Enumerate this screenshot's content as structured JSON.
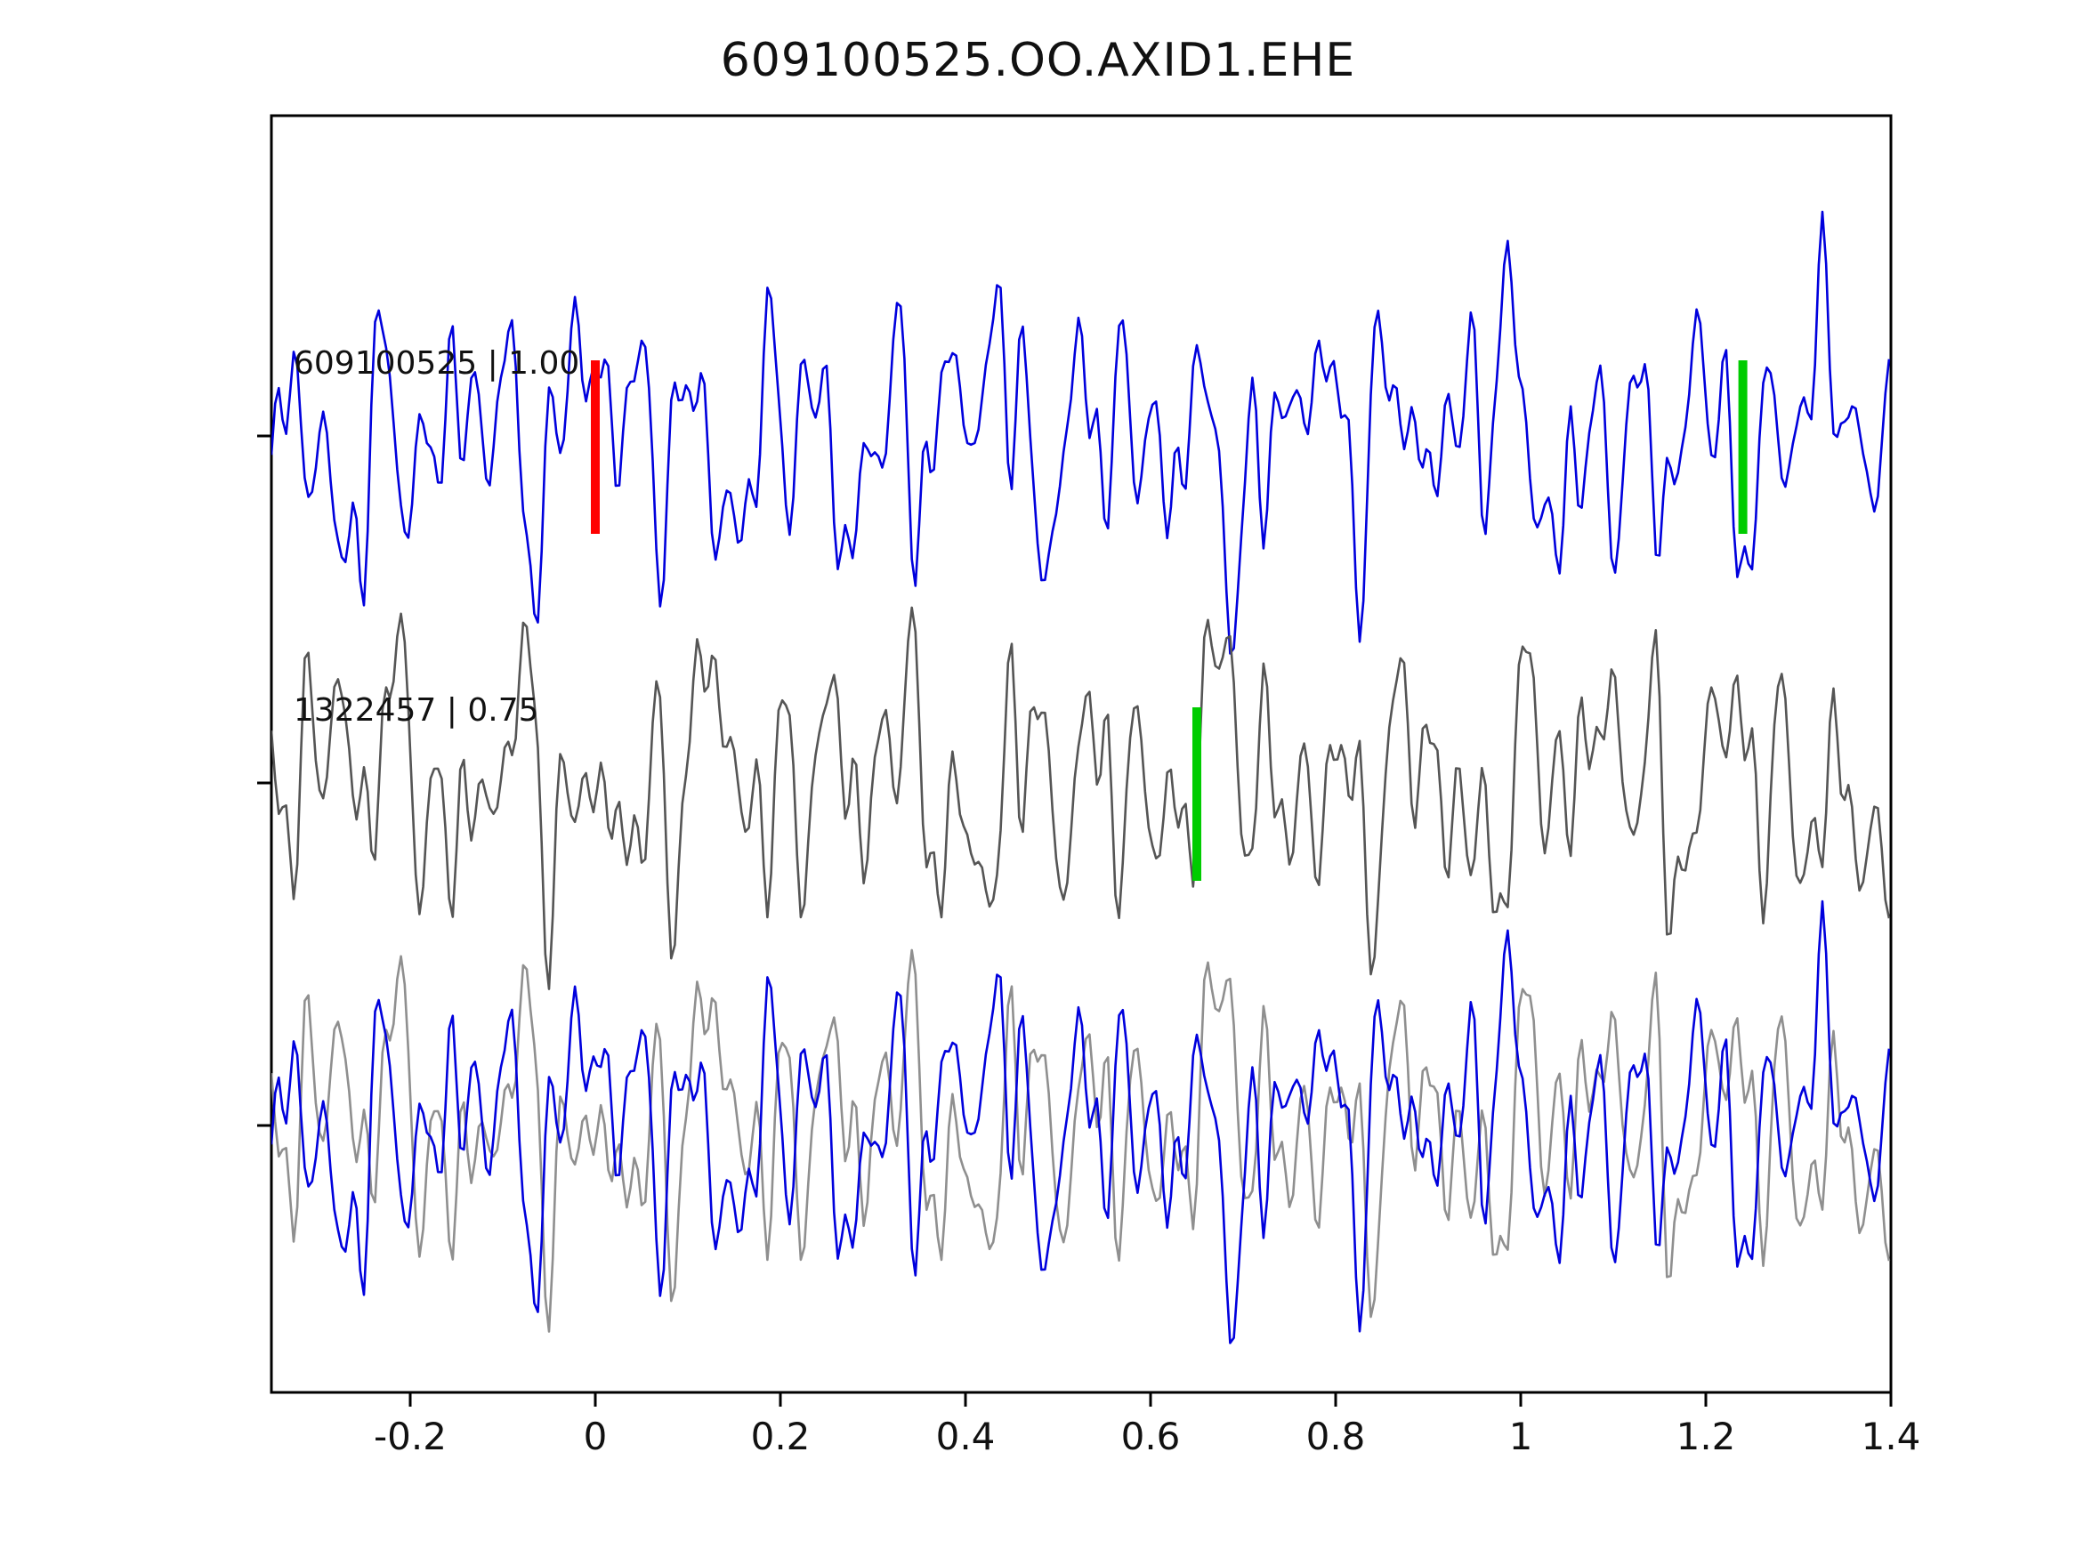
{
  "chart_data": {
    "type": "line",
    "title": "609100525.OO.AXID1.EHE",
    "xlabel": "",
    "ylabel": "",
    "xlim": [
      -0.35,
      1.4
    ],
    "x_ticks": [
      -0.2,
      0,
      0.2,
      0.4,
      0.6,
      0.8,
      1,
      1.2,
      1.4
    ],
    "x_tick_labels": [
      "-0.2",
      "0",
      "0.2",
      "0.4",
      "0.6",
      "0.8",
      "1",
      "1.2",
      "1.4"
    ],
    "grid": false,
    "legend": "none",
    "colors": {
      "trace_primary": "#0000dd",
      "trace_secondary": "#555555",
      "overlay_secondary": "#8f8f8f",
      "pick_red": "#ff0000",
      "pick_green": "#00cc00",
      "axis": "#000000",
      "label_text": "#111111"
    },
    "panels": [
      {
        "id": "trace-609100525",
        "label": "609100525 | 1.00",
        "series": [
          {
            "signal": "blue",
            "color_key": "trace_primary"
          }
        ],
        "markers": [
          {
            "x": 0.0,
            "color_key": "pick_red"
          },
          {
            "x": 1.24,
            "color_key": "pick_green"
          }
        ]
      },
      {
        "id": "trace-1322457",
        "label": "1322457 | 0.75",
        "series": [
          {
            "signal": "gray",
            "color_key": "trace_secondary"
          }
        ],
        "markers": [
          {
            "x": 0.65,
            "color_key": "pick_green"
          }
        ]
      },
      {
        "id": "overlay-aligned",
        "label": "",
        "series": [
          {
            "signal": "gray",
            "color_key": "overlay_secondary"
          },
          {
            "signal": "blue",
            "color_key": "trace_primary"
          }
        ],
        "markers": []
      }
    ],
    "signals": {
      "note": "band-limited noise waveforms; reconstructed as harmonic-sum approximation",
      "blue": {
        "components": [
          {
            "f": 2.2,
            "a": 0.3,
            "p": 1.9
          },
          {
            "f": 5.3,
            "a": 0.45,
            "p": 0.8
          },
          {
            "f": 9.1,
            "a": 0.6,
            "p": 2.1
          },
          {
            "f": 14.7,
            "a": 0.75,
            "p": 4.0
          },
          {
            "f": 21.3,
            "a": 0.65,
            "p": 1.3
          },
          {
            "f": 28.9,
            "a": 0.55,
            "p": 5.2
          },
          {
            "f": 37.1,
            "a": 0.45,
            "p": 0.4
          },
          {
            "f": 47.3,
            "a": 0.3,
            "p": 3.3
          },
          {
            "f": 58.7,
            "a": 0.2,
            "p": 2.6
          }
        ]
      },
      "gray": {
        "components": [
          {
            "f": 2.2,
            "a": 0.25,
            "p": 5.0
          },
          {
            "f": 5.3,
            "a": 0.5,
            "p": 3.9
          },
          {
            "f": 9.1,
            "a": 0.55,
            "p": 0.7
          },
          {
            "f": 14.7,
            "a": 0.7,
            "p": 2.6
          },
          {
            "f": 21.3,
            "a": 0.7,
            "p": 5.5
          },
          {
            "f": 28.9,
            "a": 0.6,
            "p": 1.8
          },
          {
            "f": 37.1,
            "a": 0.4,
            "p": 4.4
          },
          {
            "f": 47.3,
            "a": 0.35,
            "p": 0.2
          },
          {
            "f": 58.7,
            "a": 0.22,
            "p": 4.9
          }
        ]
      }
    }
  }
}
